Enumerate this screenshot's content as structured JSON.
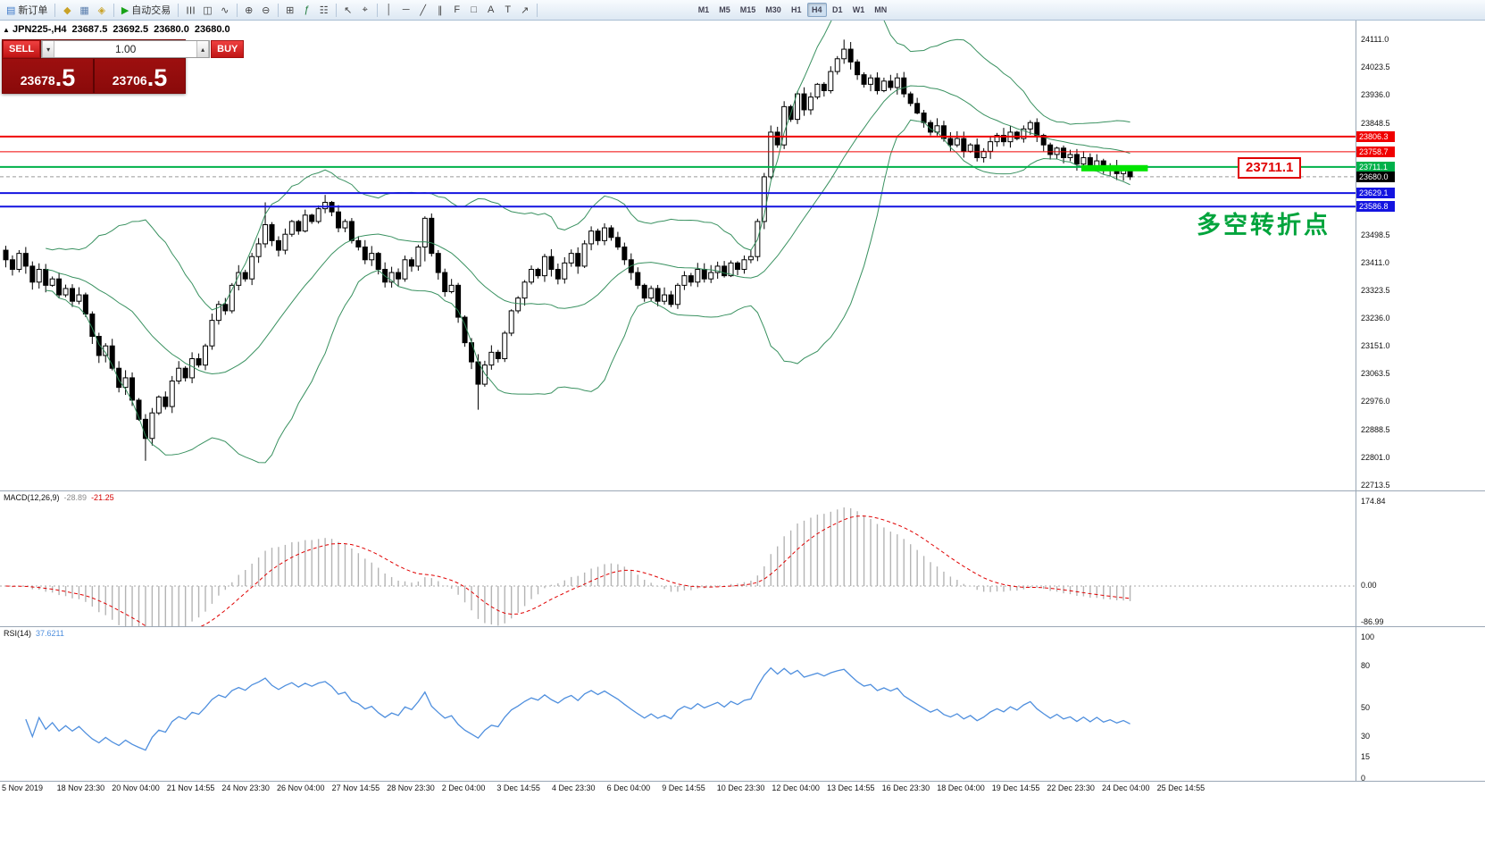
{
  "toolbar": {
    "new_order": {
      "label": "新订单",
      "icon_glyph": "▤",
      "icon_color": "#3c78c8"
    },
    "autotrade": {
      "label": "自动交易",
      "icon_glyph": "▶",
      "icon_color": "#19a319"
    },
    "icon_groups": [
      [
        {
          "name": "market-watch-icon",
          "glyph": "◆",
          "color": "#c9a227"
        },
        {
          "name": "data-window-icon",
          "glyph": "▦",
          "color": "#5b7fae"
        },
        {
          "name": "navigator-icon",
          "glyph": "◈",
          "color": "#c9a227"
        }
      ],
      [
        {
          "name": "bar-chart-icon",
          "glyph": "☰",
          "color": "#444",
          "rot": true
        },
        {
          "name": "candlestick-icon",
          "glyph": "◫",
          "color": "#444"
        },
        {
          "name": "line-chart-icon",
          "glyph": "∿",
          "color": "#444"
        }
      ],
      [
        {
          "name": "zoom-in-icon",
          "glyph": "⊕",
          "color": "#444"
        },
        {
          "name": "zoom-out-icon",
          "glyph": "⊖",
          "color": "#444"
        }
      ],
      [
        {
          "name": "tile-windows-icon",
          "glyph": "⊞",
          "color": "#444"
        },
        {
          "name": "indicators-icon",
          "glyph": "ƒ",
          "color": "#1d7a3a"
        },
        {
          "name": "templates-icon",
          "glyph": "☷",
          "color": "#444"
        }
      ],
      [
        {
          "name": "cursor-icon",
          "glyph": "↖",
          "color": "#444"
        },
        {
          "name": "crosshair-icon",
          "glyph": "⌖",
          "color": "#444"
        }
      ],
      [
        {
          "name": "vertical-line-icon",
          "glyph": "│",
          "color": "#444"
        },
        {
          "name": "horizontal-line-icon",
          "glyph": "─",
          "color": "#444"
        },
        {
          "name": "trendline-icon",
          "glyph": "╱",
          "color": "#444"
        },
        {
          "name": "channel-icon",
          "glyph": "∥",
          "color": "#444"
        },
        {
          "name": "fibonacci-icon",
          "glyph": "F",
          "color": "#444"
        },
        {
          "name": "shapes-icon",
          "glyph": "□",
          "color": "#444"
        },
        {
          "name": "text-icon",
          "glyph": "A",
          "color": "#444"
        },
        {
          "name": "label-icon",
          "glyph": "T",
          "color": "#444"
        },
        {
          "name": "arrow-icon",
          "glyph": "↗",
          "color": "#444"
        }
      ]
    ],
    "timeframes": [
      "M1",
      "M5",
      "M15",
      "M30",
      "H1",
      "H4",
      "D1",
      "W1",
      "MN"
    ],
    "active_timeframe": "H4"
  },
  "chart_header": {
    "collapse": "▲",
    "symbol_period": "JPN225-,H4",
    "open": "23687.5",
    "high": "23692.5",
    "low": "23680.0",
    "close": "23680.0"
  },
  "order_panel": {
    "sell_label": "SELL",
    "buy_label": "BUY",
    "volume": "1.00",
    "vol_down_glyph": "▾",
    "vol_up_glyph": "▴",
    "sell_price_int": "23678",
    "sell_price_frac": ".5",
    "buy_price_int": "23706",
    "buy_price_frac": ".5"
  },
  "indicators": {
    "macd_name": "MACD(12,26,9)",
    "macd_hist_value": "-28.89",
    "macd_signal_value": "-21.25",
    "rsi_name": "RSI(14)",
    "rsi_value": "37.6211"
  },
  "annotations": {
    "turning_price": "23711.1",
    "turning_note": "多空转折点"
  },
  "chart_data": {
    "type": "candlestick",
    "symbol": "JPN225-",
    "timeframe": "H4",
    "ohlc_display": {
      "open": 23687.5,
      "high": 23692.5,
      "low": 23680.0,
      "close": 23680.0
    },
    "bid": 23678.5,
    "ask": 23706.5,
    "current_price": 23680.0,
    "price_range": [
      22713.5,
      24111.0
    ],
    "y_axis_tick_values": [
      24111.0,
      24023.5,
      23936.0,
      23848.5,
      23498.5,
      23411.0,
      23323.5,
      23236.0,
      23151.0,
      23063.5,
      22976.0,
      22888.5,
      22801.0,
      22713.5
    ],
    "x_axis_labels": [
      "5 Nov 2019",
      "18 Nov 23:30",
      "20 Nov 04:00",
      "21 Nov 14:55",
      "24 Nov 23:30",
      "26 Nov 04:00",
      "27 Nov 14:55",
      "28 Nov 23:30",
      "2 Dec 04:00",
      "3 Dec 14:55",
      "4 Dec 23:30",
      "6 Dec 04:00",
      "9 Dec 14:55",
      "10 Dec 23:30",
      "12 Dec 04:00",
      "13 Dec 14:55",
      "16 Dec 23:30",
      "18 Dec 04:00",
      "19 Dec 14:55",
      "22 Dec 23:30",
      "24 Dec 04:00",
      "25 Dec 14:55"
    ],
    "first_open": 23450,
    "closes": [
      23420,
      23390,
      23440,
      23400,
      23350,
      23390,
      23340,
      23360,
      23310,
      23330,
      23290,
      23310,
      23250,
      23180,
      23120,
      23150,
      23080,
      23020,
      23050,
      22980,
      22920,
      22860,
      22940,
      22990,
      22960,
      23040,
      23080,
      23050,
      23110,
      23090,
      23150,
      23230,
      23280,
      23260,
      23340,
      23380,
      23360,
      23430,
      23470,
      23530,
      23480,
      23450,
      23500,
      23540,
      23510,
      23560,
      23540,
      23580,
      23600,
      23570,
      23520,
      23540,
      23480,
      23460,
      23420,
      23440,
      23390,
      23350,
      23380,
      23360,
      23420,
      23400,
      23460,
      23550,
      23440,
      23380,
      23320,
      23340,
      23240,
      23160,
      23100,
      23030,
      23090,
      23130,
      23110,
      23190,
      23260,
      23300,
      23350,
      23390,
      23370,
      23430,
      23390,
      23360,
      23410,
      23440,
      23400,
      23470,
      23510,
      23480,
      23520,
      23490,
      23460,
      23420,
      23380,
      23340,
      23300,
      23330,
      23290,
      23310,
      23280,
      23340,
      23370,
      23350,
      23390,
      23360,
      23380,
      23400,
      23370,
      23410,
      23390,
      23420,
      23430,
      23540,
      23680,
      23820,
      23780,
      23900,
      23860,
      23940,
      23890,
      23930,
      23970,
      23950,
      24010,
      24050,
      24080,
      24040,
      24000,
      23970,
      23990,
      23950,
      23980,
      23960,
      23990,
      23940,
      23910,
      23880,
      23850,
      23820,
      23840,
      23800,
      23780,
      23800,
      23760,
      23780,
      23740,
      23760,
      23790,
      23810,
      23790,
      23820,
      23800,
      23830,
      23850,
      23810,
      23780,
      23750,
      23770,
      23740,
      23750,
      23720,
      23740,
      23710,
      23730,
      23700,
      23710,
      23690,
      23700,
      23680
    ],
    "wick_extremes": [
      {
        "i": 21,
        "low": 70
      },
      {
        "i": 39,
        "high": 70
      },
      {
        "i": 63,
        "low": 45
      },
      {
        "i": 71,
        "low": 80
      },
      {
        "i": 126,
        "high": 30
      }
    ],
    "levels": [
      {
        "price": 23806.3,
        "color": "#f00000",
        "width": 2
      },
      {
        "price": 23758.7,
        "color": "#f00000",
        "width": 1
      },
      {
        "price": 23711.1,
        "color": "#00b14a",
        "width": 2
      },
      {
        "price": 23629.1,
        "color": "#1414e0",
        "width": 2
      },
      {
        "price": 23586.8,
        "color": "#1414e0",
        "width": 2
      }
    ],
    "highlight": {
      "start_index": 162,
      "end_index": 172,
      "price": 23707,
      "color": "#00e400",
      "thickness": 7
    },
    "indicators": {
      "bollinger": {
        "period": 20,
        "deviation": 2,
        "color": "#2e8b57"
      },
      "macd": {
        "fast": 12,
        "slow": 26,
        "signal": 9,
        "hist_value": -28.89,
        "signal_value": -21.25,
        "axis_labels": [
          "174.84",
          "0.00",
          "-86.99"
        ],
        "hist_color": "#b4b4b4",
        "signal_color": "#e00000"
      },
      "rsi": {
        "period": 14,
        "value": 37.6211,
        "axis_labels": [
          "100",
          "80",
          "50",
          "30",
          "15",
          "0"
        ],
        "color": "#4f8fde"
      }
    }
  }
}
